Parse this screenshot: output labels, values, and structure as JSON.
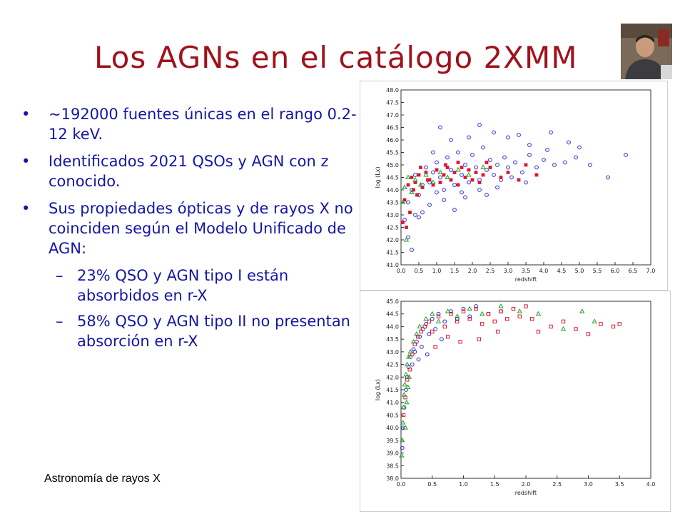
{
  "slide": {
    "title": "Los AGNs en el catálogo 2XMM",
    "bullets": [
      "~192000 fuentes únicas en el rango 0.2-12 keV.",
      "Identificados 2021 QSOs y AGN con z conocido.",
      "Sus propiedades ópticas y de rayos X no coinciden según el Modelo Unificado de AGN:"
    ],
    "sub_bullets": [
      "23% QSO y AGN tipo I están absorbidos en r-X",
      "58% QSO y AGN tipo II no presentan absorción en r-X"
    ],
    "bullet_mark": "•",
    "sub_mark": "–",
    "footer": "Astronomía de rayos X"
  },
  "colors": {
    "title": "#a0121b",
    "text": "#1515a8",
    "blue": "#2a2ad8",
    "red": "#e01530",
    "green": "#1ea01e"
  },
  "chart_data": [
    {
      "type": "scatter",
      "xlabel": "redshift",
      "ylabel": "log (Lx)",
      "xlim": [
        0,
        7
      ],
      "ylim": [
        41,
        48
      ],
      "xticks": [
        "0.0",
        "0.5",
        "1.0",
        "1.5",
        "2.0",
        "2.5",
        "3.0",
        "3.5",
        "4.0",
        "4.5",
        "5.0",
        "5.5",
        "6.0",
        "6.5",
        "7.0"
      ],
      "yticks": [
        "41.0",
        "41.5",
        "42.0",
        "42.5",
        "43.0",
        "43.5",
        "44.0",
        "44.5",
        "45.0",
        "45.5",
        "46.0",
        "46.5",
        "47.0",
        "47.5",
        "48.0"
      ],
      "series": [
        {
          "marker": "circle-open",
          "color": "blue",
          "points": [
            [
              0.1,
              42.8
            ],
            [
              0.2,
              43.5
            ],
            [
              0.3,
              44.0
            ],
            [
              0.4,
              44.6
            ],
            [
              0.5,
              43.8
            ],
            [
              0.6,
              44.2
            ],
            [
              0.7,
              44.9
            ],
            [
              0.8,
              44.3
            ],
            [
              0.9,
              44.7
            ],
            [
              1.0,
              45.1
            ],
            [
              1.1,
              44.5
            ],
            [
              1.2,
              44.0
            ],
            [
              1.3,
              45.3
            ],
            [
              1.4,
              44.8
            ],
            [
              1.5,
              44.2
            ],
            [
              1.6,
              45.5
            ],
            [
              1.7,
              44.6
            ],
            [
              1.8,
              45.0
            ],
            [
              1.9,
              44.3
            ],
            [
              2.0,
              45.4
            ],
            [
              2.1,
              44.9
            ],
            [
              2.2,
              44.4
            ],
            [
              2.3,
              45.7
            ],
            [
              2.4,
              44.8
            ],
            [
              2.5,
              45.2
            ],
            [
              2.6,
              44.6
            ],
            [
              2.7,
              45.0
            ],
            [
              2.8,
              44.4
            ],
            [
              2.9,
              45.3
            ],
            [
              3.0,
              44.9
            ],
            [
              3.2,
              45.1
            ],
            [
              3.4,
              44.7
            ],
            [
              3.6,
              45.4
            ],
            [
              3.8,
              44.9
            ],
            [
              4.0,
              45.2
            ],
            [
              4.3,
              45.0
            ],
            [
              4.6,
              45.1
            ],
            [
              4.9,
              45.3
            ],
            [
              5.3,
              45.0
            ],
            [
              5.8,
              44.5
            ],
            [
              6.3,
              45.4
            ],
            [
              0.3,
              41.6
            ],
            [
              0.5,
              42.9
            ],
            [
              0.8,
              43.4
            ],
            [
              1.2,
              43.6
            ],
            [
              1.5,
              43.2
            ],
            [
              1.8,
              43.7
            ],
            [
              2.2,
              44.0
            ],
            [
              2.7,
              44.1
            ],
            [
              3.1,
              44.5
            ],
            [
              0.9,
              45.5
            ],
            [
              1.4,
              46.0
            ],
            [
              1.9,
              46.1
            ],
            [
              2.6,
              46.3
            ],
            [
              3.3,
              46.2
            ],
            [
              3.6,
              45.8
            ],
            [
              4.1,
              45.6
            ],
            [
              4.7,
              45.9
            ],
            [
              1.1,
              46.5
            ],
            [
              2.2,
              46.6
            ],
            [
              3.0,
              46.1
            ],
            [
              4.2,
              46.3
            ],
            [
              5.0,
              45.7
            ],
            [
              0.6,
              43.1
            ],
            [
              1.0,
              43.9
            ],
            [
              1.7,
              43.9
            ],
            [
              2.4,
              43.8
            ],
            [
              3.5,
              44.3
            ],
            [
              0.2,
              42.1
            ],
            [
              0.4,
              43.0
            ]
          ]
        },
        {
          "marker": "square-filled",
          "color": "red",
          "points": [
            [
              0.05,
              42.7
            ],
            [
              0.1,
              43.6
            ],
            [
              0.15,
              42.5
            ],
            [
              0.2,
              44.2
            ],
            [
              0.25,
              43.1
            ],
            [
              0.3,
              44.5
            ],
            [
              0.4,
              44.3
            ],
            [
              0.5,
              44.6
            ],
            [
              0.6,
              44.1
            ],
            [
              0.7,
              44.7
            ],
            [
              0.8,
              44.4
            ],
            [
              0.9,
              44.2
            ],
            [
              1.0,
              44.8
            ],
            [
              1.1,
              44.3
            ],
            [
              1.2,
              44.6
            ],
            [
              1.3,
              44.9
            ],
            [
              1.4,
              44.4
            ],
            [
              1.5,
              44.7
            ],
            [
              1.6,
              44.2
            ],
            [
              1.7,
              44.9
            ],
            [
              1.8,
              44.5
            ],
            [
              1.9,
              44.8
            ],
            [
              2.0,
              44.4
            ],
            [
              2.1,
              44.7
            ],
            [
              2.2,
              44.3
            ],
            [
              2.3,
              44.6
            ],
            [
              2.5,
              44.9
            ],
            [
              2.8,
              44.5
            ],
            [
              3.0,
              44.7
            ],
            [
              3.3,
              44.4
            ],
            [
              3.5,
              45.0
            ],
            [
              3.8,
              44.6
            ],
            [
              0.35,
              44.0
            ],
            [
              0.45,
              43.8
            ],
            [
              0.55,
              44.9
            ],
            [
              0.75,
              44.4
            ],
            [
              1.25,
              45.0
            ],
            [
              1.6,
              45.1
            ],
            [
              2.4,
              45.1
            ]
          ]
        },
        {
          "marker": "triangle-open",
          "color": "green",
          "points": [
            [
              0.05,
              43.5
            ],
            [
              0.1,
              44.1
            ],
            [
              0.15,
              42.0
            ],
            [
              0.2,
              44.5
            ],
            [
              0.3,
              43.9
            ],
            [
              0.4,
              44.4
            ],
            [
              0.55,
              44.2
            ],
            [
              0.7,
              44.6
            ],
            [
              0.9,
              44.3
            ],
            [
              1.1,
              44.7
            ],
            [
              1.3,
              44.5
            ],
            [
              1.6,
              44.8
            ],
            [
              1.9,
              44.6
            ],
            [
              2.3,
              44.9
            ]
          ]
        }
      ]
    },
    {
      "type": "scatter",
      "xlabel": "redshift",
      "ylabel": "log (Lx)",
      "xlim": [
        0,
        4
      ],
      "ylim": [
        38,
        45
      ],
      "xticks": [
        "0.0",
        "0.5",
        "1.0",
        "1.5",
        "2.0",
        "2.5",
        "3.0",
        "3.5",
        "4.0"
      ],
      "yticks": [
        "38.0",
        "38.5",
        "39.0",
        "39.5",
        "40.0",
        "40.5",
        "41.0",
        "41.5",
        "42.0",
        "42.5",
        "43.0",
        "43.5",
        "44.0",
        "44.5",
        "45.0"
      ],
      "series": [
        {
          "marker": "circle-open",
          "color": "blue",
          "points": [
            [
              0.02,
              39.2
            ],
            [
              0.03,
              40.0
            ],
            [
              0.05,
              40.8
            ],
            [
              0.08,
              41.5
            ],
            [
              0.1,
              42.0
            ],
            [
              0.12,
              42.4
            ],
            [
              0.15,
              42.8
            ],
            [
              0.2,
              43.1
            ],
            [
              0.25,
              43.4
            ],
            [
              0.3,
              43.6
            ],
            [
              0.35,
              43.9
            ],
            [
              0.4,
              44.1
            ],
            [
              0.45,
              43.7
            ],
            [
              0.5,
              44.3
            ],
            [
              0.55,
              43.9
            ],
            [
              0.6,
              44.5
            ],
            [
              0.7,
              44.2
            ],
            [
              0.8,
              44.6
            ],
            [
              0.9,
              44.3
            ],
            [
              1.0,
              44.7
            ],
            [
              1.1,
              44.4
            ],
            [
              1.2,
              44.8
            ],
            [
              1.4,
              44.5
            ],
            [
              1.6,
              44.6
            ],
            [
              0.18,
              42.5
            ],
            [
              0.22,
              43.0
            ],
            [
              0.28,
              42.7
            ],
            [
              0.33,
              43.2
            ],
            [
              0.42,
              42.9
            ],
            [
              0.65,
              43.5
            ]
          ]
        },
        {
          "marker": "square-open",
          "color": "red",
          "points": [
            [
              0.04,
              40.5
            ],
            [
              0.07,
              41.2
            ],
            [
              0.1,
              41.9
            ],
            [
              0.14,
              42.3
            ],
            [
              0.18,
              42.9
            ],
            [
              0.22,
              43.3
            ],
            [
              0.27,
              43.6
            ],
            [
              0.32,
              43.8
            ],
            [
              0.38,
              44.0
            ],
            [
              0.45,
              44.2
            ],
            [
              0.5,
              43.8
            ],
            [
              0.6,
              44.4
            ],
            [
              0.7,
              44.0
            ],
            [
              0.8,
              44.5
            ],
            [
              0.9,
              44.2
            ],
            [
              1.0,
              44.6
            ],
            [
              1.1,
              44.3
            ],
            [
              1.2,
              44.7
            ],
            [
              1.3,
              44.1
            ],
            [
              1.4,
              44.5
            ],
            [
              1.5,
              44.2
            ],
            [
              1.6,
              44.6
            ],
            [
              1.7,
              44.3
            ],
            [
              1.8,
              44.7
            ],
            [
              1.9,
              44.4
            ],
            [
              2.0,
              44.8
            ],
            [
              2.1,
              44.3
            ],
            [
              2.2,
              43.8
            ],
            [
              2.4,
              44.0
            ],
            [
              2.6,
              44.2
            ],
            [
              2.8,
              43.9
            ],
            [
              3.0,
              43.7
            ],
            [
              3.2,
              44.1
            ],
            [
              3.4,
              44.0
            ],
            [
              3.5,
              44.1
            ],
            [
              0.55,
              43.2
            ],
            [
              0.75,
              43.6
            ],
            [
              0.95,
              43.4
            ],
            [
              1.25,
              43.5
            ],
            [
              1.55,
              43.8
            ]
          ]
        },
        {
          "marker": "triangle-open",
          "color": "green",
          "points": [
            [
              0.01,
              38.9
            ],
            [
              0.02,
              39.5
            ],
            [
              0.03,
              40.2
            ],
            [
              0.04,
              40.8
            ],
            [
              0.05,
              41.3
            ],
            [
              0.06,
              41.7
            ],
            [
              0.08,
              42.1
            ],
            [
              0.1,
              42.5
            ],
            [
              0.12,
              42.8
            ],
            [
              0.15,
              43.0
            ],
            [
              0.2,
              43.4
            ],
            [
              0.25,
              43.7
            ],
            [
              0.3,
              44.0
            ],
            [
              0.4,
              44.3
            ],
            [
              0.5,
              44.5
            ],
            [
              0.6,
              44.2
            ],
            [
              0.75,
              44.6
            ],
            [
              0.9,
              44.4
            ],
            [
              1.1,
              44.7
            ],
            [
              1.3,
              44.5
            ],
            [
              1.6,
              44.8
            ],
            [
              1.9,
              44.6
            ],
            [
              2.2,
              44.5
            ],
            [
              2.6,
              43.9
            ],
            [
              2.9,
              44.6
            ],
            [
              3.1,
              44.2
            ],
            [
              0.07,
              40.0
            ],
            [
              0.09,
              41.0
            ],
            [
              0.11,
              41.6
            ],
            [
              0.13,
              42.0
            ]
          ]
        }
      ]
    }
  ]
}
